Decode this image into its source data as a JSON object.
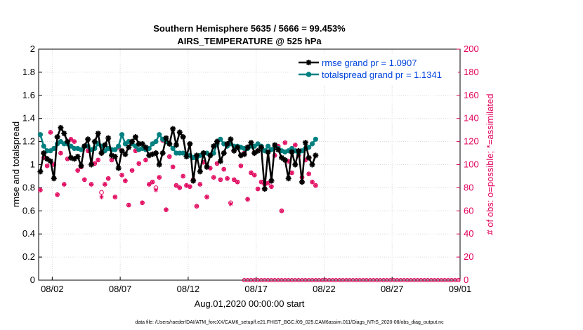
{
  "chart_data": {
    "type": "line",
    "title": "Southern Hemisphere 5635 / 5666 = 99.453%",
    "subtitle": "AIRS_TEMPERATURE @ 525 hPa",
    "xlabel": "Aug.01,2020 00:00:00 start",
    "ylabel_left": "rmse and totalspread",
    "ylabel_right": "# of obs: o=possible; *=assimilated",
    "footnote": "data file: /Users/raeder/DAI/ATM_forcXX/CAM6_setup/f.e21.FHIST_BGC.f09_025.CAM6assim.011/Diags_NTrS_2020-08/obs_diag_output.nc",
    "xlim": [
      0,
      31
    ],
    "ylim_left": [
      0,
      2
    ],
    "ylim_right": [
      0,
      200
    ],
    "x_ticks": [
      {
        "value": 1,
        "label": "08/02"
      },
      {
        "value": 6,
        "label": "08/07"
      },
      {
        "value": 11,
        "label": "08/12"
      },
      {
        "value": 16,
        "label": "08/17"
      },
      {
        "value": 21,
        "label": "08/22"
      },
      {
        "value": 26,
        "label": "08/27"
      },
      {
        "value": 31,
        "label": "09/01"
      }
    ],
    "y_ticks_left": [
      "0",
      "0.2",
      "0.4",
      "0.6",
      "0.8",
      "1",
      "1.2",
      "1.4",
      "1.6",
      "1.8",
      "2"
    ],
    "y_ticks_right": [
      "0",
      "20",
      "40",
      "60",
      "80",
      "100",
      "120",
      "140",
      "160",
      "180",
      "200"
    ],
    "x_step": 0.25,
    "x_start": 0.125,
    "grid": true,
    "legend_position": "top-right",
    "colors": {
      "rmse": "#000000",
      "totalspread": "#008080",
      "obs": "#e0005a",
      "grid": "#dadada",
      "legend_text": "#0044dd"
    },
    "series": [
      {
        "name": "rmse grand pr = 1.0907",
        "axis": "left",
        "marker": "star",
        "values": [
          0.94,
          1.1,
          1.05,
          1.03,
          0.88,
          1.24,
          1.32,
          1.27,
          1.2,
          1.06,
          1.05,
          1.07,
          0.99,
          1.16,
          1.22,
          1.0,
          1.2,
          1.27,
          1.1,
          1.17,
          1.23,
          1.08,
          1.07,
          0.97,
          1.12,
          1.09,
          1.15,
          1.2,
          1.24,
          1.18,
          1.18,
          1.15,
          1.08,
          1.09,
          1.1,
          1.0,
          1.1,
          1.23,
          1.18,
          1.31,
          1.17,
          1.28,
          1.24,
          1.07,
          1.18,
          0.86,
          1.08,
          0.94,
          1.1,
          0.98,
          1.08,
          1.16,
          1.2,
          1.03,
          1.1,
          1.18,
          1.22,
          1.12,
          1.15,
          1.08,
          1.09,
          1.15,
          1.19,
          1.1,
          1.12,
          1.15,
          0.79,
          1.11,
          0.86,
          1.17,
          1.13,
          1.06,
          1.04,
          0.88,
          1.11,
          1.0,
          1.12,
          0.85,
          1.19,
          1.06,
          1.0,
          1.08
        ]
      },
      {
        "name": "totalspread grand pr = 1.1341",
        "axis": "left",
        "marker": "circle",
        "values": [
          1.26,
          1.16,
          1.12,
          1.12,
          1.14,
          1.18,
          1.2,
          1.18,
          1.18,
          1.16,
          1.14,
          1.14,
          1.13,
          1.16,
          1.16,
          1.13,
          1.14,
          1.18,
          1.16,
          1.12,
          1.14,
          1.13,
          1.13,
          1.16,
          1.26,
          1.18,
          1.2,
          1.18,
          1.16,
          1.13,
          1.14,
          1.13,
          1.14,
          1.18,
          1.2,
          1.26,
          1.22,
          1.2,
          1.18,
          1.14,
          1.1,
          1.1,
          1.1,
          1.08,
          1.08,
          1.06,
          1.06,
          1.08,
          1.1,
          1.1,
          1.08,
          1.1,
          1.18,
          1.22,
          1.18,
          1.16,
          1.18,
          1.16,
          1.16,
          1.15,
          1.14,
          1.14,
          1.16,
          1.16,
          1.18,
          1.16,
          1.12,
          1.16,
          1.13,
          1.15,
          1.14,
          1.12,
          1.11,
          1.12,
          1.14,
          1.12,
          1.1,
          1.12,
          1.14,
          1.15,
          1.18,
          1.22
        ]
      },
      {
        "name": "obs possible",
        "axis": "right",
        "marker": "o",
        "values": [
          78,
          106,
          99,
          128,
          100,
          74,
          110,
          83,
          105,
          122,
          120,
          95,
          98,
          87,
          112,
          83,
          101,
          104,
          76,
          83,
          88,
          104,
          72,
          115,
          91,
          86,
          65,
          95,
          112,
          101,
          67,
          104,
          83,
          85,
          80,
          89,
          121,
          61,
          107,
          98,
          82,
          80,
          90,
          82,
          81,
          87,
          64,
          83,
          102,
          72,
          97,
          89,
          101,
          87,
          96,
          88,
          67,
          87,
          85,
          99,
          110,
          70,
          93,
          91,
          79,
          85,
          83,
          84,
          81,
          108,
          116,
          60,
          119,
          103,
          93,
          117,
          108,
          89,
          104,
          92,
          85,
          82
        ]
      },
      {
        "name": "obs assimilated",
        "axis": "right",
        "marker": "star",
        "values": [
          78,
          106,
          99,
          128,
          100,
          74,
          110,
          83,
          105,
          122,
          120,
          95,
          98,
          87,
          112,
          83,
          101,
          104,
          72,
          83,
          88,
          104,
          72,
          115,
          91,
          86,
          65,
          95,
          112,
          101,
          67,
          104,
          83,
          85,
          78,
          89,
          121,
          61,
          107,
          98,
          82,
          80,
          90,
          82,
          81,
          87,
          64,
          83,
          102,
          72,
          97,
          89,
          101,
          87,
          96,
          88,
          66,
          87,
          85,
          99,
          110,
          70,
          93,
          91,
          79,
          85,
          83,
          84,
          81,
          108,
          116,
          60,
          119,
          103,
          93,
          117,
          108,
          89,
          104,
          92,
          85,
          82
        ]
      },
      {
        "name": "obs zero",
        "axis": "right",
        "marker": "o",
        "x_start": 15.125,
        "values": [
          0,
          0,
          0,
          0,
          0,
          0,
          0,
          0,
          0,
          0,
          0,
          0,
          0,
          0,
          0,
          0,
          0,
          0,
          0,
          0,
          0,
          0,
          0,
          0,
          0,
          0,
          0,
          0,
          0,
          0,
          0,
          0,
          0,
          0,
          0,
          0,
          0,
          0,
          0,
          0,
          0,
          0,
          0,
          0,
          0,
          0,
          0,
          0,
          0,
          0,
          0,
          0,
          0,
          0,
          0,
          0,
          0,
          0,
          0,
          0,
          0,
          0,
          0,
          0
        ]
      }
    ]
  }
}
